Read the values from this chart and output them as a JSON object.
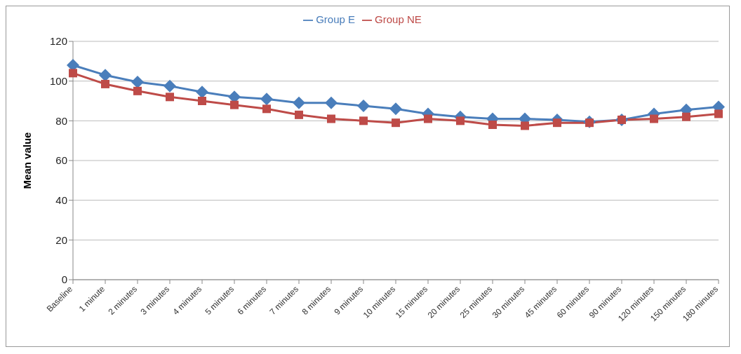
{
  "chart_data": {
    "type": "line",
    "ylabel": "Mean value",
    "categories": [
      "Baseline",
      "1 minute",
      "2 minutes",
      "3 minutes",
      "4 minutes",
      "5 minutes",
      "6 minutes",
      "7 minutes",
      "8 minutes",
      "9 minutes",
      "10 minutes",
      "15 minutes",
      "20 minutes",
      "25 minutes",
      "30 minutes",
      "45 minutes",
      "60 minutes",
      "90 minutes",
      "120 minutes",
      "150 minutes",
      "180 minutes"
    ],
    "series": [
      {
        "name": "Group E",
        "color": "#4a7ebb",
        "marker": "diamond",
        "values": [
          108,
          103,
          99.5,
          97.5,
          94.5,
          92,
          91,
          89,
          89,
          87.5,
          86,
          83.5,
          82,
          81,
          81,
          80.5,
          79.5,
          80.5,
          83.5,
          85.5,
          87
        ]
      },
      {
        "name": "Group NE",
        "color": "#be4b48",
        "marker": "square",
        "values": [
          104,
          98.5,
          95,
          92,
          90,
          88,
          86,
          83,
          81,
          80,
          79,
          81,
          80,
          78,
          77.5,
          79,
          79,
          80.5,
          81,
          82,
          83.5
        ]
      }
    ],
    "ylim": [
      0,
      120
    ],
    "yticks": [
      0,
      20,
      40,
      60,
      80,
      100,
      120
    ],
    "grid": "y",
    "legend": "top",
    "line_style": "solid"
  }
}
